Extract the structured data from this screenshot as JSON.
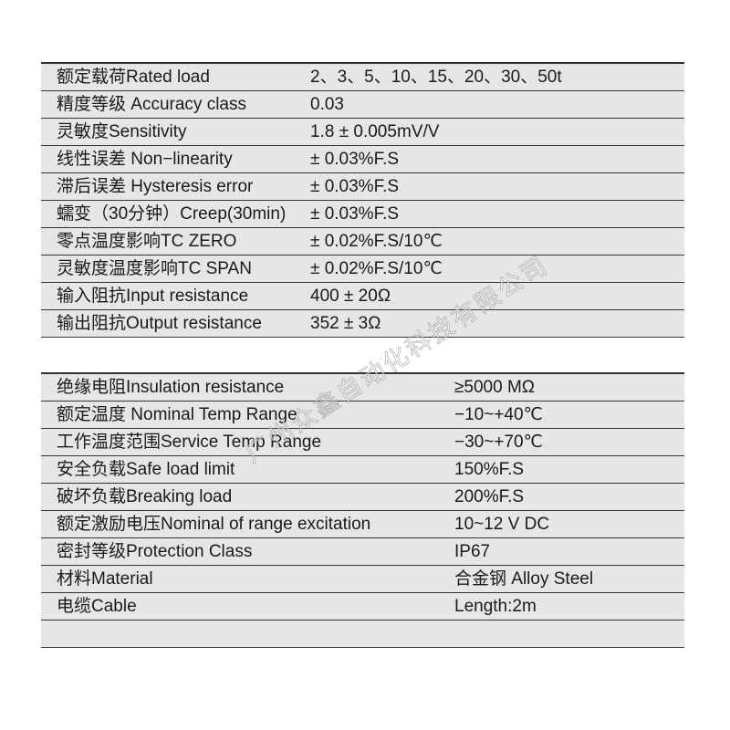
{
  "table1": [
    {
      "label": "额定载荷Rated load",
      "value": "2、3、5、10、15、20、30、50t"
    },
    {
      "label": "精度等级 Accuracy class",
      "value": "0.03"
    },
    {
      "label": "灵敏度Sensitivity",
      "value": "1.8 ± 0.005mV/V"
    },
    {
      "label": "线性误差 Non−linearity",
      "value": "± 0.03%F.S"
    },
    {
      "label": "滞后误差 Hysteresis error",
      "value": "± 0.03%F.S"
    },
    {
      "label": "蠕变（30分钟）Creep(30min)",
      "value": "± 0.03%F.S"
    },
    {
      "label": "零点温度影响TC ZERO",
      "value": "± 0.02%F.S/10℃"
    },
    {
      "label": "灵敏度温度影响TC SPAN",
      "value": "± 0.02%F.S/10℃"
    },
    {
      "label": "输入阻抗Input resistance",
      "value": "400 ± 20Ω"
    },
    {
      "label": "输出阻抗Output resistance",
      "value": "352 ± 3Ω"
    }
  ],
  "table2": [
    {
      "label": "绝缘电阻Insulation resistance",
      "value": "≥5000 MΩ"
    },
    {
      "label": "额定温度 Nominal Temp Range",
      "value": "−10~+40℃"
    },
    {
      "label": "工作温度范围Service Temp Range",
      "value": "−30~+70℃"
    },
    {
      "label": "安全负载Safe load limit",
      "value": "150%F.S"
    },
    {
      "label": "破坏负载Breaking load",
      "value": "200%F.S"
    },
    {
      "label": "额定激励电压Nominal of range excitation",
      "value": "10~12 V DC"
    },
    {
      "label": "密封等级Protection Class",
      "value": "IP67"
    },
    {
      "label": "材料Material",
      "value": "合金钢 Alloy Steel"
    },
    {
      "label": "电缆Cable",
      "value": "Length:2m"
    }
  ],
  "watermark": "广州众鑫自动化科技有限公司"
}
